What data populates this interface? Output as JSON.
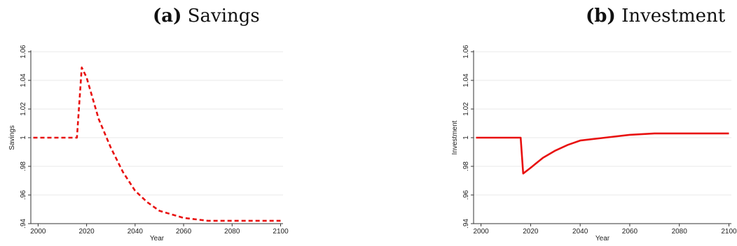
{
  "panels": [
    {
      "caption_tag": "(a)",
      "caption_text": "Savings"
    },
    {
      "caption_tag": "(b)",
      "caption_text": "Investment"
    }
  ],
  "chart_data": [
    {
      "type": "line",
      "title": "(a) Savings",
      "xlabel": "Year",
      "ylabel": "Savings",
      "xlim": [
        1997,
        2101
      ],
      "ylim": [
        0.94,
        1.06
      ],
      "xticks": [
        2000,
        2020,
        2040,
        2060,
        2080,
        2100
      ],
      "yticks": [
        0.94,
        0.96,
        0.98,
        1.0,
        1.02,
        1.04,
        1.06
      ],
      "ytick_labels": [
        ".94",
        ".96",
        ".98",
        "1",
        "1.02",
        "1.04",
        "1.06"
      ],
      "grid": true,
      "series": [
        {
          "line_style": "dashed",
          "color": "#e8100f",
          "x": [
            1998,
            2016,
            2018,
            2020,
            2025,
            2030,
            2035,
            2040,
            2045,
            2050,
            2060,
            2070,
            2080,
            2090,
            2100
          ],
          "y": [
            1.0,
            1.0,
            1.049,
            1.042,
            1.013,
            0.993,
            0.976,
            0.963,
            0.955,
            0.949,
            0.944,
            0.942,
            0.942,
            0.942,
            0.942
          ]
        }
      ]
    },
    {
      "type": "line",
      "title": "(b) Investment",
      "xlabel": "Year",
      "ylabel": "Investment",
      "xlim": [
        1997,
        2101
      ],
      "ylim": [
        0.94,
        1.06
      ],
      "xticks": [
        2000,
        2020,
        2040,
        2060,
        2080,
        2100
      ],
      "yticks": [
        0.94,
        0.96,
        0.98,
        1.0,
        1.02,
        1.04,
        1.06
      ],
      "ytick_labels": [
        ".94",
        ".96",
        ".98",
        "1",
        "1.02",
        "1.04",
        "1.06"
      ],
      "grid": true,
      "series": [
        {
          "line_style": "solid",
          "color": "#e8100f",
          "x": [
            1998,
            2016,
            2017,
            2020,
            2025,
            2030,
            2035,
            2040,
            2050,
            2060,
            2070,
            2080,
            2090,
            2100
          ],
          "y": [
            1.0,
            1.0,
            0.975,
            0.979,
            0.986,
            0.991,
            0.995,
            0.998,
            1.0,
            1.002,
            1.003,
            1.003,
            1.003,
            1.003
          ]
        }
      ]
    }
  ]
}
